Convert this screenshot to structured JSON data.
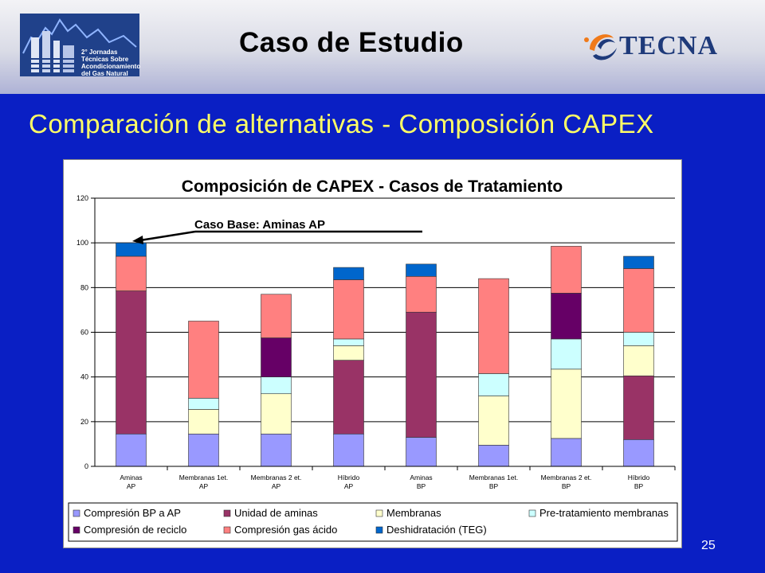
{
  "header": {
    "title": "Caso de Estudio",
    "logo_left_text": "2° Jornadas Técnicas Sobre Acondicionamiento del Gas Natural",
    "logo_right_text": "TECNA"
  },
  "slide": {
    "title": "Comparación de alternativas - Composición CAPEX",
    "page_number": "25"
  },
  "chart_data": {
    "type": "bar",
    "stacked": true,
    "title": "Composición de CAPEX - Casos de Tratamiento",
    "annotation": "Caso Base: Aminas AP",
    "ylim": [
      0,
      120
    ],
    "yticks": [
      0,
      20,
      40,
      60,
      80,
      100,
      120
    ],
    "grid": true,
    "legend_position": "bottom",
    "categories": [
      [
        "Aminas",
        "AP"
      ],
      [
        "Membranas 1et.",
        "AP"
      ],
      [
        "Membranas 2 et.",
        "AP"
      ],
      [
        "Híbrido",
        "AP"
      ],
      [
        "Aminas",
        "BP"
      ],
      [
        "Membranas 1et.",
        "BP"
      ],
      [
        "Membranas 2 et.",
        "BP"
      ],
      [
        "Híbrido",
        "BP"
      ]
    ],
    "series": [
      {
        "name": "Compresión BP a AP",
        "color": "#9999ff",
        "values": [
          14.5,
          14.5,
          14.5,
          14.5,
          13,
          9.5,
          12.5,
          12
        ]
      },
      {
        "name": "Unidad de aminas",
        "color": "#993366",
        "values": [
          64,
          0,
          0,
          33,
          56,
          0,
          0,
          28.5
        ]
      },
      {
        "name": "Membranas",
        "color": "#ffffcc",
        "values": [
          0,
          11,
          18,
          6.5,
          0,
          22,
          31,
          13.5
        ]
      },
      {
        "name": "Pre-tratamiento membranas",
        "color": "#ccffff",
        "values": [
          0,
          5,
          7.5,
          3,
          0,
          10,
          13.5,
          6
        ]
      },
      {
        "name": "Compresión de reciclo",
        "color": "#660066",
        "values": [
          0,
          0,
          17.5,
          0,
          0,
          0,
          20.5,
          0
        ]
      },
      {
        "name": "Compresión gas ácido",
        "color": "#ff8080",
        "values": [
          15.5,
          34.5,
          19.5,
          26.5,
          16,
          42.5,
          21,
          28.5
        ]
      },
      {
        "name": "Deshidratación (TEG)",
        "color": "#0066cc",
        "values": [
          6,
          0,
          0,
          5.5,
          5.5,
          0,
          0,
          5.5
        ]
      }
    ]
  }
}
